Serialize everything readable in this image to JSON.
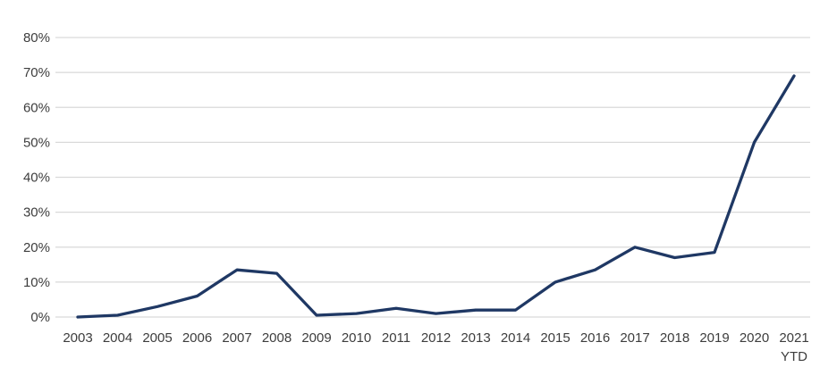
{
  "chart_data": {
    "type": "line",
    "title": "",
    "xlabel": "",
    "ylabel": "",
    "categories": [
      "2003",
      "2004",
      "2005",
      "2006",
      "2007",
      "2008",
      "2009",
      "2010",
      "2011",
      "2012",
      "2013",
      "2014",
      "2015",
      "2016",
      "2017",
      "2018",
      "2019",
      "2020",
      "2021"
    ],
    "last_category_note": "YTD",
    "series": [
      {
        "name": "percent-line",
        "values": [
          0,
          0.5,
          3,
          6,
          13.5,
          12.5,
          0.5,
          1,
          2.5,
          1,
          2,
          2,
          10,
          13.5,
          20,
          17,
          18.5,
          50,
          69
        ]
      }
    ],
    "y_ticks": [
      "0%",
      "10%",
      "20%",
      "30%",
      "40%",
      "50%",
      "60%",
      "70%",
      "80%"
    ],
    "ylim": [
      0,
      80
    ],
    "y_step": 10,
    "grid": "horizontal-only",
    "legend": "none",
    "colors": {
      "line": "#1f3864",
      "gridline": "#d9d9d9",
      "labels": "#3d3d3d",
      "background": "#ffffff"
    }
  }
}
